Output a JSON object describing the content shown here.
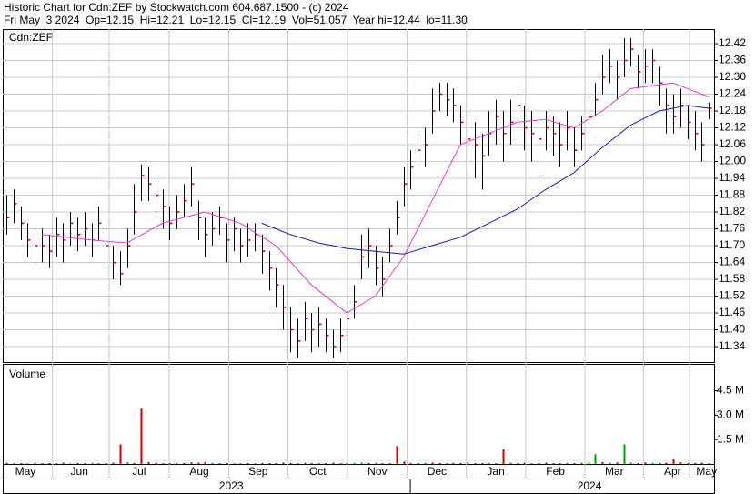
{
  "chart_data": {
    "type": "ohlc",
    "title": "Historic Chart for Cdn:ZEF by Stockwatch.com 604.687.1500 - (c) 2024",
    "subtitle": "Fri May  3 2024  Op=12.15  Hi=12.21  Lo=12.15  Cl=12.19  Vol=51,057  Year hi=12.44  lo=11.30",
    "symbol": "Cdn:ZEF",
    "grid": true,
    "bar_color": "#000000",
    "close_color": "#cc0000",
    "xlim": [
      -0.5,
      99.5
    ],
    "x": [
      0,
      1,
      2,
      3,
      4,
      5,
      6,
      7,
      8,
      9,
      10,
      11,
      12,
      13,
      14,
      15,
      16,
      17,
      18,
      19,
      20,
      21,
      22,
      23,
      24,
      25,
      26,
      27,
      28,
      29,
      30,
      31,
      32,
      33,
      34,
      35,
      36,
      37,
      38,
      39,
      40,
      41,
      42,
      43,
      44,
      45,
      46,
      47,
      48,
      49,
      50,
      51,
      52,
      53,
      54,
      55,
      56,
      57,
      58,
      59,
      60,
      61,
      62,
      63,
      64,
      65,
      66,
      67,
      68,
      69,
      70,
      71,
      72,
      73,
      74,
      75,
      76,
      77,
      78,
      79,
      80,
      81,
      82,
      83,
      84,
      85,
      86,
      87,
      88,
      89,
      90,
      91,
      92,
      93,
      94,
      95,
      96,
      97,
      98,
      99
    ],
    "xticks": [
      {
        "value": 2.7,
        "label": "May"
      },
      {
        "value": 10.3,
        "label": "Jun"
      },
      {
        "value": 18.7,
        "label": "Jul"
      },
      {
        "value": 27.2,
        "label": "Aug"
      },
      {
        "value": 35.5,
        "label": "Sep"
      },
      {
        "value": 43.9,
        "label": "Oct"
      },
      {
        "value": 52.3,
        "label": "Nov"
      },
      {
        "value": 60.7,
        "label": "Dec"
      },
      {
        "value": 69,
        "label": "Jan"
      },
      {
        "value": 77.4,
        "label": "Feb"
      },
      {
        "value": 85.7,
        "label": "Mar"
      },
      {
        "value": 93.9,
        "label": "Apr"
      },
      {
        "value": 98.7,
        "label": "May"
      }
    ],
    "year_ticks": [
      {
        "value": 31.7,
        "label": "2023"
      },
      {
        "value": 82.2,
        "label": "2024"
      }
    ],
    "ylim": [
      11.285,
      12.472
    ],
    "yticks": [
      11.34,
      {
        "value": 11.4,
        "label": "11.40"
      },
      11.46,
      11.52,
      11.58,
      11.64,
      {
        "value": 11.7,
        "label": "11.70"
      },
      11.76,
      11.82,
      11.88,
      11.94,
      {
        "value": 12,
        "label": "12.00"
      },
      12.06,
      12.12,
      12.18,
      12.24,
      {
        "value": 12.3,
        "label": "12.30"
      },
      12.36,
      12.42
    ],
    "high": [
      11.88,
      11.9,
      11.84,
      11.78,
      11.76,
      11.76,
      11.74,
      11.8,
      11.78,
      11.82,
      11.8,
      11.82,
      11.78,
      11.84,
      11.76,
      11.7,
      11.68,
      11.76,
      11.92,
      11.99,
      11.98,
      11.94,
      11.9,
      11.84,
      11.88,
      11.92,
      11.98,
      11.86,
      11.8,
      11.82,
      11.84,
      11.78,
      11.8,
      11.76,
      11.78,
      11.78,
      11.74,
      11.68,
      11.62,
      11.56,
      11.48,
      11.44,
      11.5,
      11.46,
      11.48,
      11.44,
      11.4,
      11.44,
      11.5,
      11.56,
      11.74,
      11.76,
      11.7,
      11.66,
      11.76,
      11.86,
      11.98,
      12.04,
      12.1,
      12.12,
      12.26,
      12.28,
      12.28,
      12.26,
      12.2,
      12.18,
      12.14,
      12.1,
      12.18,
      12.22,
      12.18,
      12.22,
      12.24,
      12.2,
      12.18,
      12.16,
      12.18,
      12.16,
      12.14,
      12.18,
      12.12,
      12.16,
      12.22,
      12.28,
      12.38,
      12.4,
      12.36,
      12.44,
      12.44,
      12.38,
      12.4,
      12.4,
      12.34,
      12.26,
      12.24,
      12.26,
      12.2,
      12.18,
      12.14,
      12.21
    ],
    "low": [
      11.74,
      11.78,
      11.72,
      11.66,
      11.64,
      11.64,
      11.62,
      11.66,
      11.64,
      11.7,
      11.68,
      11.7,
      11.66,
      11.72,
      11.62,
      11.58,
      11.56,
      11.62,
      11.74,
      11.86,
      11.86,
      11.8,
      11.76,
      11.72,
      11.76,
      11.8,
      11.84,
      11.72,
      11.66,
      11.7,
      11.74,
      11.64,
      11.68,
      11.64,
      11.66,
      11.68,
      11.6,
      11.54,
      11.48,
      11.4,
      11.32,
      11.3,
      11.36,
      11.32,
      11.34,
      11.32,
      11.3,
      11.32,
      11.38,
      11.44,
      11.58,
      11.62,
      11.56,
      11.52,
      11.64,
      11.74,
      11.84,
      11.9,
      11.98,
      11.98,
      12.1,
      12.18,
      12.16,
      12.14,
      12.06,
      11.98,
      11.94,
      11.9,
      12.02,
      12.06,
      12.0,
      12.06,
      12.12,
      12.04,
      12.0,
      11.94,
      12.04,
      12.02,
      11.98,
      12.04,
      11.98,
      12.04,
      12.1,
      12.16,
      12.24,
      12.28,
      12.22,
      12.3,
      12.34,
      12.26,
      12.28,
      12.28,
      12.2,
      12.1,
      12.1,
      12.12,
      12.08,
      12.04,
      12.0,
      12.15
    ],
    "close": [
      11.8,
      11.85,
      11.78,
      11.72,
      11.7,
      11.7,
      11.68,
      11.74,
      11.72,
      11.78,
      11.74,
      11.76,
      11.72,
      11.78,
      11.7,
      11.64,
      11.6,
      11.7,
      11.82,
      11.95,
      11.92,
      11.88,
      11.84,
      11.78,
      11.82,
      11.86,
      11.92,
      11.8,
      11.74,
      11.76,
      11.8,
      11.72,
      11.76,
      11.7,
      11.72,
      11.74,
      11.68,
      11.62,
      11.56,
      11.48,
      11.4,
      11.36,
      11.44,
      11.4,
      11.42,
      11.38,
      11.34,
      11.38,
      11.44,
      11.5,
      11.66,
      11.7,
      11.62,
      11.58,
      11.7,
      11.8,
      11.92,
      11.98,
      12.04,
      12.06,
      12.18,
      12.24,
      12.22,
      12.2,
      12.14,
      12.08,
      12.06,
      12.02,
      12.1,
      12.16,
      12.1,
      12.14,
      12.2,
      12.12,
      12.1,
      12.08,
      12.12,
      12.1,
      12.06,
      12.12,
      12.04,
      12.1,
      12.16,
      12.22,
      12.3,
      12.34,
      12.3,
      12.36,
      12.4,
      12.32,
      12.34,
      12.36,
      12.28,
      12.2,
      12.16,
      12.2,
      12.14,
      12.1,
      12.06,
      12.19
    ],
    "ma": [
      {
        "color": "#e040c0",
        "x": [
          5,
          12,
          17,
          22,
          28,
          33,
          38,
          43,
          48,
          52,
          56,
          60,
          64,
          68,
          72,
          76,
          80,
          84,
          88,
          94,
          99
        ],
        "values": [
          11.74,
          11.72,
          11.71,
          11.78,
          11.82,
          11.78,
          11.7,
          11.56,
          11.46,
          11.52,
          11.66,
          11.86,
          12.06,
          12.1,
          12.14,
          12.15,
          12.12,
          12.18,
          12.26,
          12.28,
          12.23
        ]
      },
      {
        "color": "#1a1aa0",
        "x": [
          36,
          40,
          44,
          48,
          52,
          56,
          60,
          64,
          68,
          72,
          76,
          80,
          84,
          88,
          92,
          96,
          99
        ],
        "values": [
          11.78,
          11.74,
          11.71,
          11.69,
          11.68,
          11.67,
          11.7,
          11.73,
          11.78,
          11.83,
          11.9,
          11.96,
          12.05,
          12.13,
          12.18,
          12.2,
          12.19
        ]
      }
    ],
    "volume": {
      "label": "Volume",
      "ylim": [
        0,
        6.15
      ],
      "yticks": [
        {
          "value": 1.5,
          "label": "1.5 M"
        },
        {
          "value": 3,
          "label": "3.0 M"
        },
        {
          "value": 4.5,
          "label": "4.5 M"
        }
      ],
      "values": [
        0.08,
        0.05,
        0.06,
        0.04,
        0.07,
        0.05,
        0.06,
        0.05,
        0.08,
        0.04,
        0.06,
        0.05,
        0.07,
        0.05,
        0.06,
        0.08,
        1.2,
        0.1,
        0.06,
        3.4,
        0.12,
        0.08,
        0.06,
        0.05,
        0.07,
        0.06,
        0.1,
        0.08,
        0.12,
        0.07,
        0.05,
        0.06,
        0.05,
        0.04,
        0.06,
        0.05,
        0.07,
        0.06,
        0.05,
        0.08,
        0.06,
        0.05,
        0.07,
        0.06,
        0.05,
        0.06,
        0.08,
        0.05,
        0.06,
        0.07,
        0.08,
        0.06,
        0.07,
        0.05,
        0.06,
        1.1,
        0.15,
        0.08,
        0.06,
        0.07,
        0.09,
        0.06,
        0.05,
        0.07,
        0.06,
        0.08,
        0.05,
        0.06,
        0.07,
        0.05,
        0.9,
        0.08,
        0.06,
        0.07,
        0.05,
        0.06,
        0.08,
        0.06,
        0.05,
        0.07,
        0.06,
        0.08,
        0.1,
        0.6,
        0.12,
        0.08,
        0.1,
        1.2,
        0.08,
        0.06,
        0.1,
        0.07,
        0.06,
        0.08,
        0.3,
        0.1,
        0.07,
        0.06,
        0.08,
        0.05
      ],
      "colors": [
        "#cc0000",
        "#00a000",
        "#cc0000",
        "#cc0000",
        "#00a000",
        "#cc0000",
        "#cc0000",
        "#00a000",
        "#cc0000",
        "#00a000",
        "#cc0000",
        "#cc0000",
        "#00a000",
        "#cc0000",
        "#cc0000",
        "#cc0000",
        "#cc0000",
        "#00a000",
        "#cc0000",
        "#cc0000",
        "#cc0000",
        "#cc0000",
        "#00a000",
        "#cc0000",
        "#00a000",
        "#cc0000",
        "#cc0000",
        "#cc0000",
        "#cc0000",
        "#00a000",
        "#cc0000",
        "#cc0000",
        "#00a000",
        "#cc0000",
        "#cc0000",
        "#00a000",
        "#cc0000",
        "#cc0000",
        "#cc0000",
        "#cc0000",
        "#cc0000",
        "#00a000",
        "#cc0000",
        "#cc0000",
        "#00a000",
        "#cc0000",
        "#cc0000",
        "#00a000",
        "#cc0000",
        "#00a000",
        "#00a000",
        "#cc0000",
        "#cc0000",
        "#cc0000",
        "#00a000",
        "#cc0000",
        "#cc0000",
        "#00a000",
        "#cc0000",
        "#00a000",
        "#cc0000",
        "#cc0000",
        "#cc0000",
        "#cc0000",
        "#cc0000",
        "#00a000",
        "#cc0000",
        "#cc0000",
        "#00a000",
        "#cc0000",
        "#cc0000",
        "#00a000",
        "#cc0000",
        "#cc0000",
        "#00a000",
        "#cc0000",
        "#cc0000",
        "#00a000",
        "#cc0000",
        "#00a000",
        "#cc0000",
        "#00a000",
        "#00a000",
        "#00a000",
        "#cc0000",
        "#00a000",
        "#cc0000",
        "#00a000",
        "#00a000",
        "#cc0000",
        "#cc0000",
        "#00a000",
        "#cc0000",
        "#cc0000",
        "#cc0000",
        "#cc0000",
        "#00a000",
        "#cc0000",
        "#cc0000",
        "#00a000"
      ]
    }
  }
}
